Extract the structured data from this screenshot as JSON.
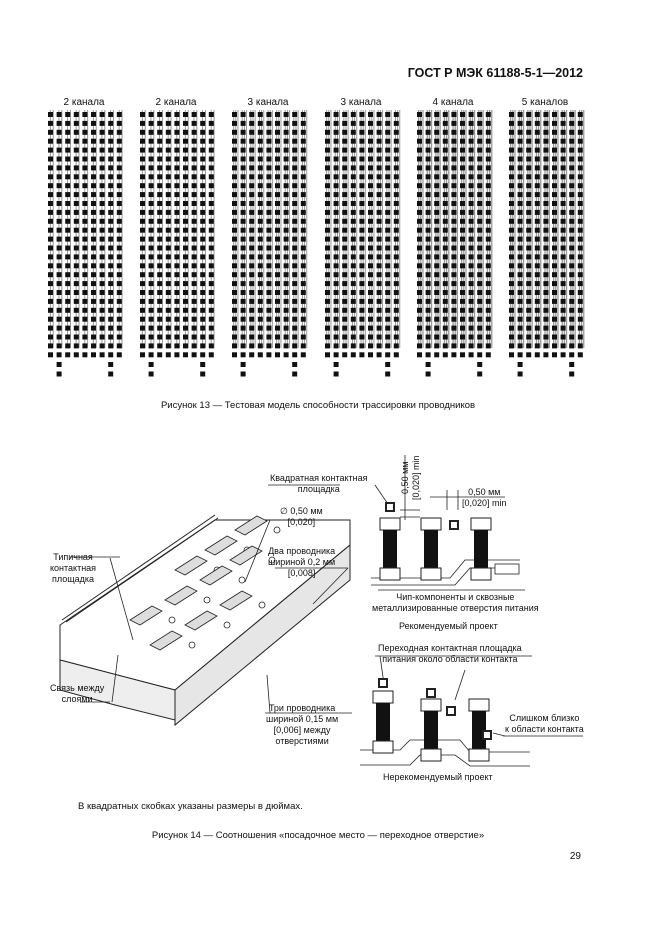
{
  "header": {
    "standard": "ГОСТ Р МЭК 61188-5-1—2012"
  },
  "figure13": {
    "panels": [
      {
        "label": "2 канала",
        "channels": 2
      },
      {
        "label": "2 канала",
        "channels": 2
      },
      {
        "label": "3 канала",
        "channels": 3
      },
      {
        "label": "3 канала",
        "channels": 3
      },
      {
        "label": "4 канала",
        "channels": 4
      },
      {
        "label": "5 каналов",
        "channels": 5
      }
    ],
    "caption": "Рисунок 13 — Тестовая модель способности трассировки проводников"
  },
  "figure14": {
    "left": {
      "typical_pad": [
        "Типичная",
        "контактная",
        "площадка"
      ],
      "diameter": [
        "∅ 0,50 мм",
        "[0,020]"
      ],
      "two_conductors": [
        "Два проводника",
        "шириной 0,2 мм",
        "[0,008]"
      ],
      "interlayer": [
        "Связь между",
        "слоями"
      ],
      "three_conductors": [
        "Три проводника",
        "шириной 0,15 мм",
        "[0,006] между",
        "отверстиями"
      ]
    },
    "right": {
      "square_pad": [
        "Квадратная контактная",
        "площадка"
      ],
      "dim_vertical": [
        "0,50 мм",
        "[0,020] min"
      ],
      "dim_horizontal": [
        "0,50 мм",
        "[0,020] min"
      ],
      "chip_caption": [
        "Чип-компоненты и сквозные",
        "металлизированные отверстия питания"
      ],
      "recommended": "Рекомендуемый проект",
      "via_near": [
        "Переходная контактная площадка",
        "питания около области контакта"
      ],
      "too_close": [
        "Слишком близко",
        "к области контакта"
      ],
      "not_recommended": "Нерекомендуемый проект"
    },
    "note": "В квадратных скобках указаны размеры в дюймах.",
    "caption": "Рисунок 14 — Соотношения «посадочное место — переходное отверстие»"
  },
  "page_number": "29"
}
